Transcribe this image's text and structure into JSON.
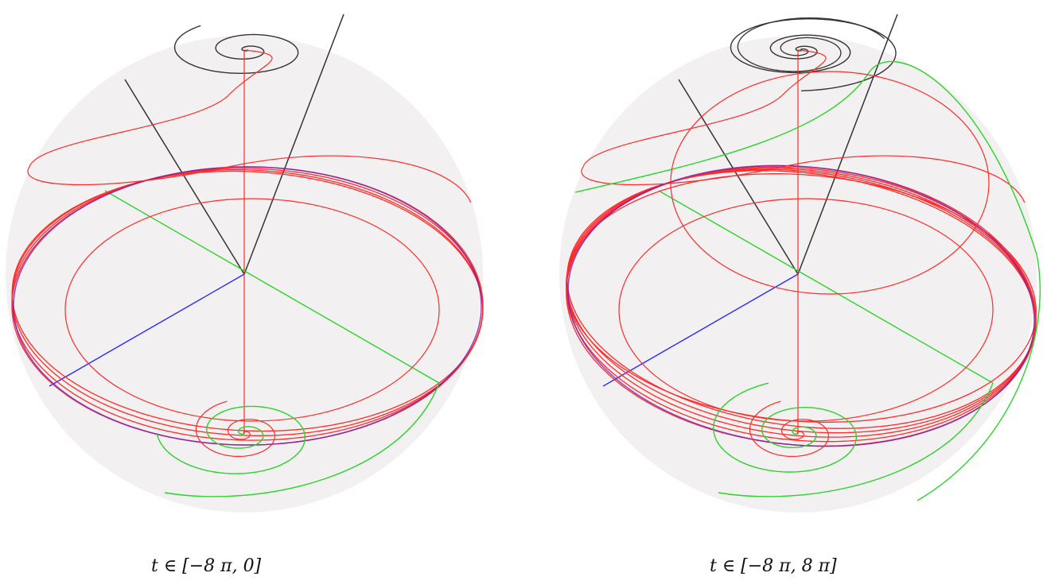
{
  "panels": [
    {
      "id": "left",
      "caption": "t ∈ [−8 π, 0]"
    },
    {
      "id": "right",
      "caption": "t ∈ [−8 π, 8 π]"
    }
  ],
  "colors": {
    "sphere": "#f1eeee",
    "projection_curve": "#ff2a2a",
    "top_spiral": "#333333",
    "bottom_spiral": "#2ad42a",
    "axis_blue": "#2a2aff",
    "background": "#ffffff"
  }
}
